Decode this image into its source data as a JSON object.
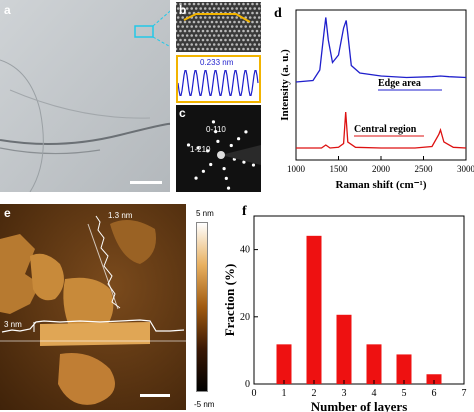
{
  "panels": {
    "a": {
      "label": "a"
    },
    "b": {
      "label": "b",
      "spacing_label": "0.233 nm"
    },
    "c": {
      "label": "c",
      "spot_labels": [
        "0-110",
        "1-210"
      ]
    },
    "d": {
      "label": "d"
    },
    "e": {
      "label": "e",
      "height_labels": [
        "1.3 nm",
        "3 nm"
      ],
      "colorbar_labels": [
        "5 nm",
        "-5 nm"
      ]
    },
    "f": {
      "label": "f"
    }
  },
  "chart_data": [
    {
      "type": "line",
      "panel": "d",
      "xlabel": "Raman shift (cm⁻¹)",
      "ylabel": "Intensity (a. u.)",
      "xlim": [
        1000,
        3000
      ],
      "xticks": [
        1000,
        1500,
        2000,
        2500,
        3000
      ],
      "series": [
        {
          "name": "Edge area",
          "color": "#1f1fcc",
          "x": [
            1000,
            1200,
            1280,
            1330,
            1350,
            1380,
            1430,
            1500,
            1560,
            1590,
            1610,
            1650,
            1750,
            2000,
            2300,
            2600,
            2700,
            2800,
            3000
          ],
          "y": [
            0.52,
            0.53,
            0.6,
            0.85,
            0.95,
            0.8,
            0.65,
            0.7,
            0.88,
            0.93,
            0.84,
            0.63,
            0.58,
            0.56,
            0.55,
            0.555,
            0.56,
            0.555,
            0.55
          ]
        },
        {
          "name": "Central region",
          "color": "#dd1111",
          "x": [
            1000,
            1300,
            1350,
            1400,
            1500,
            1560,
            1585,
            1610,
            1700,
            2000,
            2400,
            2600,
            2680,
            2700,
            2740,
            2850,
            3000
          ],
          "y": [
            0.08,
            0.08,
            0.1,
            0.08,
            0.085,
            0.11,
            0.32,
            0.12,
            0.085,
            0.08,
            0.08,
            0.09,
            0.17,
            0.2,
            0.12,
            0.085,
            0.08
          ]
        }
      ]
    },
    {
      "type": "bar",
      "panel": "f",
      "xlabel": "Number of layers",
      "ylabel": "Fraction (%)",
      "categories": [
        1,
        2,
        3,
        4,
        5,
        6
      ],
      "values": [
        11.8,
        44.1,
        20.6,
        11.8,
        8.8,
        2.9
      ],
      "xlim": [
        0,
        7
      ],
      "ylim": [
        0,
        50
      ],
      "xticks": [
        0,
        1,
        2,
        3,
        4,
        5,
        6,
        7
      ],
      "yticks": [
        0,
        20,
        40
      ],
      "bar_color": "#ee1111"
    }
  ]
}
